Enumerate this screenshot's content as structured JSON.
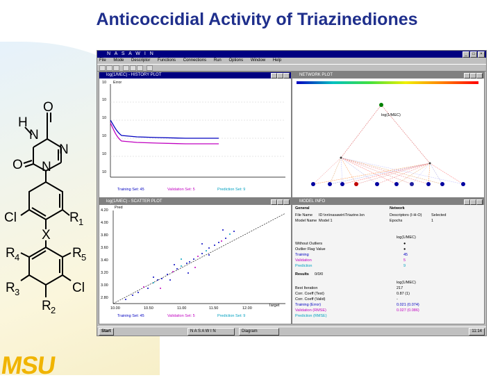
{
  "slide": {
    "title": "Anticoccidial Activity of Triazinediones",
    "logo": "MSU"
  },
  "structure": {
    "atoms": [
      "H",
      "O",
      "N",
      "N",
      "O",
      "N",
      "Cl",
      "R",
      "X",
      "R",
      "R",
      "R",
      "R",
      "Cl"
    ],
    "subscripts": [
      "1",
      "4",
      "5",
      "3",
      "2"
    ]
  },
  "app": {
    "title": "N A S A W I N",
    "menu": [
      "File",
      "Mode",
      "Descriptor",
      "Functions",
      "Connections",
      "Run",
      "Options",
      "Window",
      "Help"
    ],
    "window_controls": [
      "_",
      "□",
      "×"
    ]
  },
  "history_plot": {
    "title": "log(1/MEC) - HISTORY PLOT",
    "ylabel": "Error",
    "yticks": [
      "10",
      "10",
      "10",
      "10",
      "10",
      "10"
    ],
    "legend": {
      "training": "Training Set: 45",
      "validation": "Validation Set: 5",
      "prediction": "Prediction Set: 9"
    }
  },
  "network_plot": {
    "title": "NETWORK PLOT",
    "output_node": "log(1/MEC)"
  },
  "scatter_plot": {
    "title": "log(1/MEC) - SCATTER PLOT",
    "ylabel": "Pred",
    "xlabel": "Target",
    "yticks": [
      "4.20",
      "4.00",
      "3.80",
      "3.60",
      "3.40",
      "3.20",
      "3.00",
      "2.80"
    ],
    "xticks": [
      "10.00",
      "10.50",
      "11.00",
      "11.50",
      "12.00",
      "12.50"
    ],
    "legend": {
      "training": "Training Set: 45",
      "validation": "Validation Set: 5",
      "prediction": "Prediction Set: 9"
    }
  },
  "model_info": {
    "title": "MODEL INFO",
    "general_label": "General",
    "network_label": "Network",
    "file_name_label": "File Name",
    "file_name": "ID:\\nn\\nasawin\\Triazine.lsn",
    "model_name_label": "Model Name",
    "model_name": "Model 1",
    "descriptors_label": "Descriptors (I-H-O)",
    "descriptors": "Selected",
    "epochs_label": "Epochs",
    "epochs": "1",
    "header_target": "log(1/MEC)",
    "rows": [
      {
        "label": "Without Outliers",
        "value": "●"
      },
      {
        "label": "Outlier Flag Value",
        "value": "●"
      },
      {
        "label": "Training",
        "value": "45"
      },
      {
        "label": "Validation",
        "value": "5"
      },
      {
        "label": "Prediction",
        "value": "9"
      }
    ],
    "results_label": "Results",
    "results_value": "0/0/0",
    "stats": [
      {
        "label": "Best Iteration",
        "value": "217"
      },
      {
        "label": "Corr. Coeff (Test)",
        "value": "0.87 (1)"
      },
      {
        "label": "Corr. Coeff (Valid)",
        "value": "-"
      },
      {
        "label": "Training (Error)",
        "value": "0.021 (0.074)"
      },
      {
        "label": "Validation (RMSE)",
        "value": "0.027 (0.086)"
      },
      {
        "label": "Prediction (RMSE)",
        "value": ""
      }
    ]
  },
  "taskbar": {
    "start": "Start",
    "tasks": [
      "N A S A W I N",
      "Diagram"
    ],
    "clock": "11:14"
  },
  "colors": {
    "title_blue": "#1f2f8c",
    "logo_gold": "#f0b400",
    "titlebar": "#000080",
    "training": "#0000c0",
    "validation": "#c000c0",
    "prediction": "#00a0c0"
  }
}
